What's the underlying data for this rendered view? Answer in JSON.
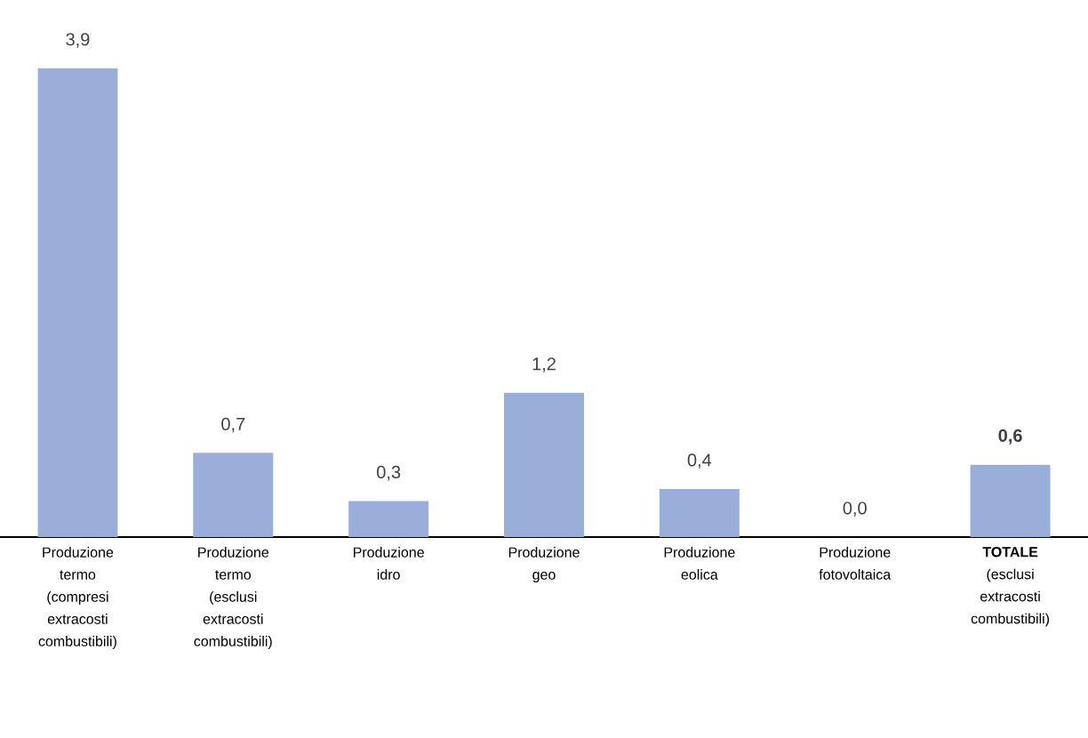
{
  "chart_data": {
    "type": "bar",
    "categories": [
      "Produzione termo (compresi extracosti combustibili)",
      "Produzione termo (esclusi extracosti combustibili)",
      "Produzione idro",
      "Produzione geo",
      "Produzione eolica",
      "Produzione fotovoltaica",
      "**TOTALE** (esclusi extracosti combustibili)"
    ],
    "values": [
      3.9,
      0.7,
      0.3,
      1.2,
      0.4,
      0.0,
      0.6
    ],
    "value_labels": [
      "3,9",
      "0,7",
      "0,3",
      "1,2",
      "0,4",
      "0,0",
      "**0,6**"
    ],
    "color": "#99afd9"
  }
}
